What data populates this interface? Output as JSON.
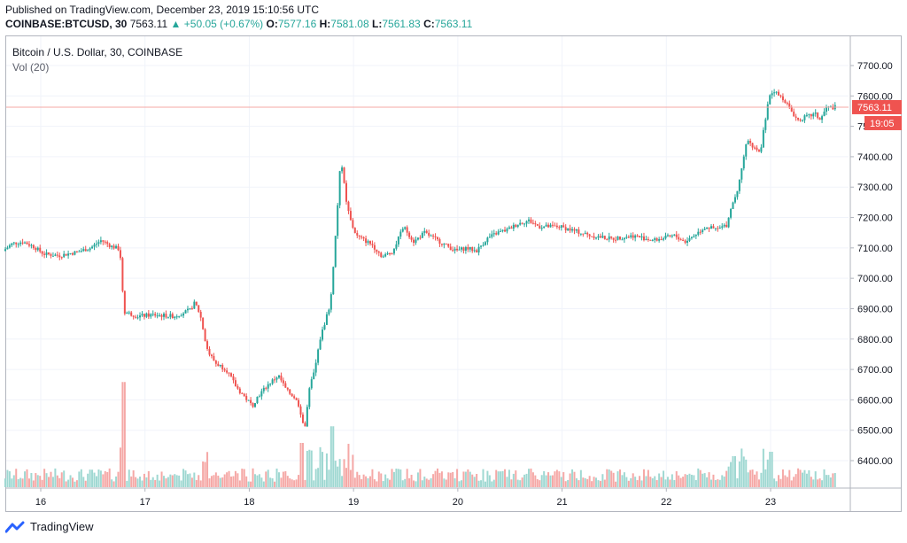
{
  "header": {
    "published": "Published on TradingView.com, December 23, 2019 15:10:56 UTC",
    "symbol": "COINBASE:BTCUSD, 30",
    "last": "7563.11",
    "change": "+50.05 (+0.67%)",
    "o_label": "O:",
    "o": "7577.16",
    "h_label": "H:",
    "h": "7581.08",
    "l_label": "L:",
    "l": "7561.83",
    "c_label": "C:",
    "c": "7563.11",
    "up_arrow": "▲"
  },
  "legend": {
    "title": "Bitcoin / U.S. Dollar, 30, COINBASE",
    "vol": "Vol (20)"
  },
  "price_tag": {
    "price": "7563.11",
    "countdown": "19:05"
  },
  "footer": {
    "brand": "TradingView",
    "icon": "tradingview-logo-icon"
  },
  "colors": {
    "up": "#26a69a",
    "down": "#ef5350",
    "up_vol": "#9fd8d2",
    "down_vol": "#f5a8a6",
    "grid": "#f0f3fa",
    "axis_text": "#131722"
  },
  "chart_data": {
    "type": "candlestick",
    "y_axis": {
      "min": 6350,
      "max": 7750,
      "ticks": [
        6400,
        6500,
        6600,
        6700,
        6800,
        6900,
        7000,
        7100,
        7200,
        7300,
        7400,
        7500,
        7600,
        7700
      ],
      "tick_labels": [
        "6400.00",
        "6500.00",
        "6600.00",
        "6700.00",
        "6800.00",
        "6900.00",
        "7000.00",
        "7100.00",
        "7200.00",
        "7300.00",
        "7400.00",
        "7500.00",
        "7600.00",
        "7700.00"
      ]
    },
    "x_axis": {
      "labels": [
        "16",
        "17",
        "18",
        "19",
        "20",
        "21",
        "22",
        "23"
      ],
      "start_day": 15.66,
      "end_day": 23.63
    },
    "volume_spikes": [
      [
        16.8,
        0.95
      ],
      [
        18.5,
        0.4
      ],
      [
        18.8,
        0.55
      ],
      [
        22.65,
        0.28
      ],
      [
        23.0,
        0.32
      ]
    ],
    "price_path": [
      [
        15.66,
        7090
      ],
      [
        15.75,
        7115
      ],
      [
        15.85,
        7120
      ],
      [
        15.95,
        7105
      ],
      [
        16.05,
        7080
      ],
      [
        16.2,
        7075
      ],
      [
        16.35,
        7085
      ],
      [
        16.5,
        7100
      ],
      [
        16.6,
        7125
      ],
      [
        16.7,
        7105
      ],
      [
        16.78,
        7095
      ],
      [
        16.82,
        6890
      ],
      [
        16.95,
        6875
      ],
      [
        17.1,
        6880
      ],
      [
        17.3,
        6875
      ],
      [
        17.45,
        6895
      ],
      [
        17.5,
        6920
      ],
      [
        17.55,
        6880
      ],
      [
        17.62,
        6760
      ],
      [
        17.7,
        6720
      ],
      [
        17.8,
        6700
      ],
      [
        17.9,
        6640
      ],
      [
        18.0,
        6600
      ],
      [
        18.05,
        6580
      ],
      [
        18.1,
        6610
      ],
      [
        18.2,
        6650
      ],
      [
        18.3,
        6680
      ],
      [
        18.38,
        6630
      ],
      [
        18.45,
        6610
      ],
      [
        18.5,
        6580
      ],
      [
        18.55,
        6500
      ],
      [
        18.6,
        6640
      ],
      [
        18.65,
        6700
      ],
      [
        18.7,
        6800
      ],
      [
        18.75,
        6860
      ],
      [
        18.8,
        6920
      ],
      [
        18.85,
        7150
      ],
      [
        18.9,
        7400
      ],
      [
        18.95,
        7250
      ],
      [
        19.0,
        7180
      ],
      [
        19.05,
        7140
      ],
      [
        19.1,
        7130
      ],
      [
        19.2,
        7110
      ],
      [
        19.3,
        7070
      ],
      [
        19.4,
        7090
      ],
      [
        19.5,
        7170
      ],
      [
        19.6,
        7120
      ],
      [
        19.7,
        7150
      ],
      [
        19.85,
        7120
      ],
      [
        20.0,
        7090
      ],
      [
        20.1,
        7100
      ],
      [
        20.2,
        7090
      ],
      [
        20.3,
        7130
      ],
      [
        20.4,
        7150
      ],
      [
        20.5,
        7160
      ],
      [
        20.6,
        7180
      ],
      [
        20.7,
        7190
      ],
      [
        20.8,
        7170
      ],
      [
        21.0,
        7170
      ],
      [
        21.2,
        7150
      ],
      [
        21.3,
        7140
      ],
      [
        21.5,
        7130
      ],
      [
        21.7,
        7140
      ],
      [
        21.9,
        7125
      ],
      [
        22.1,
        7140
      ],
      [
        22.2,
        7120
      ],
      [
        22.4,
        7170
      ],
      [
        22.5,
        7160
      ],
      [
        22.6,
        7175
      ],
      [
        22.65,
        7240
      ],
      [
        22.7,
        7290
      ],
      [
        22.75,
        7380
      ],
      [
        22.8,
        7460
      ],
      [
        22.85,
        7430
      ],
      [
        22.92,
        7410
      ],
      [
        22.95,
        7480
      ],
      [
        23.0,
        7590
      ],
      [
        23.05,
        7620
      ],
      [
        23.1,
        7600
      ],
      [
        23.15,
        7590
      ],
      [
        23.2,
        7560
      ],
      [
        23.28,
        7520
      ],
      [
        23.35,
        7530
      ],
      [
        23.45,
        7540
      ],
      [
        23.5,
        7520
      ],
      [
        23.55,
        7560
      ],
      [
        23.63,
        7563
      ]
    ]
  }
}
